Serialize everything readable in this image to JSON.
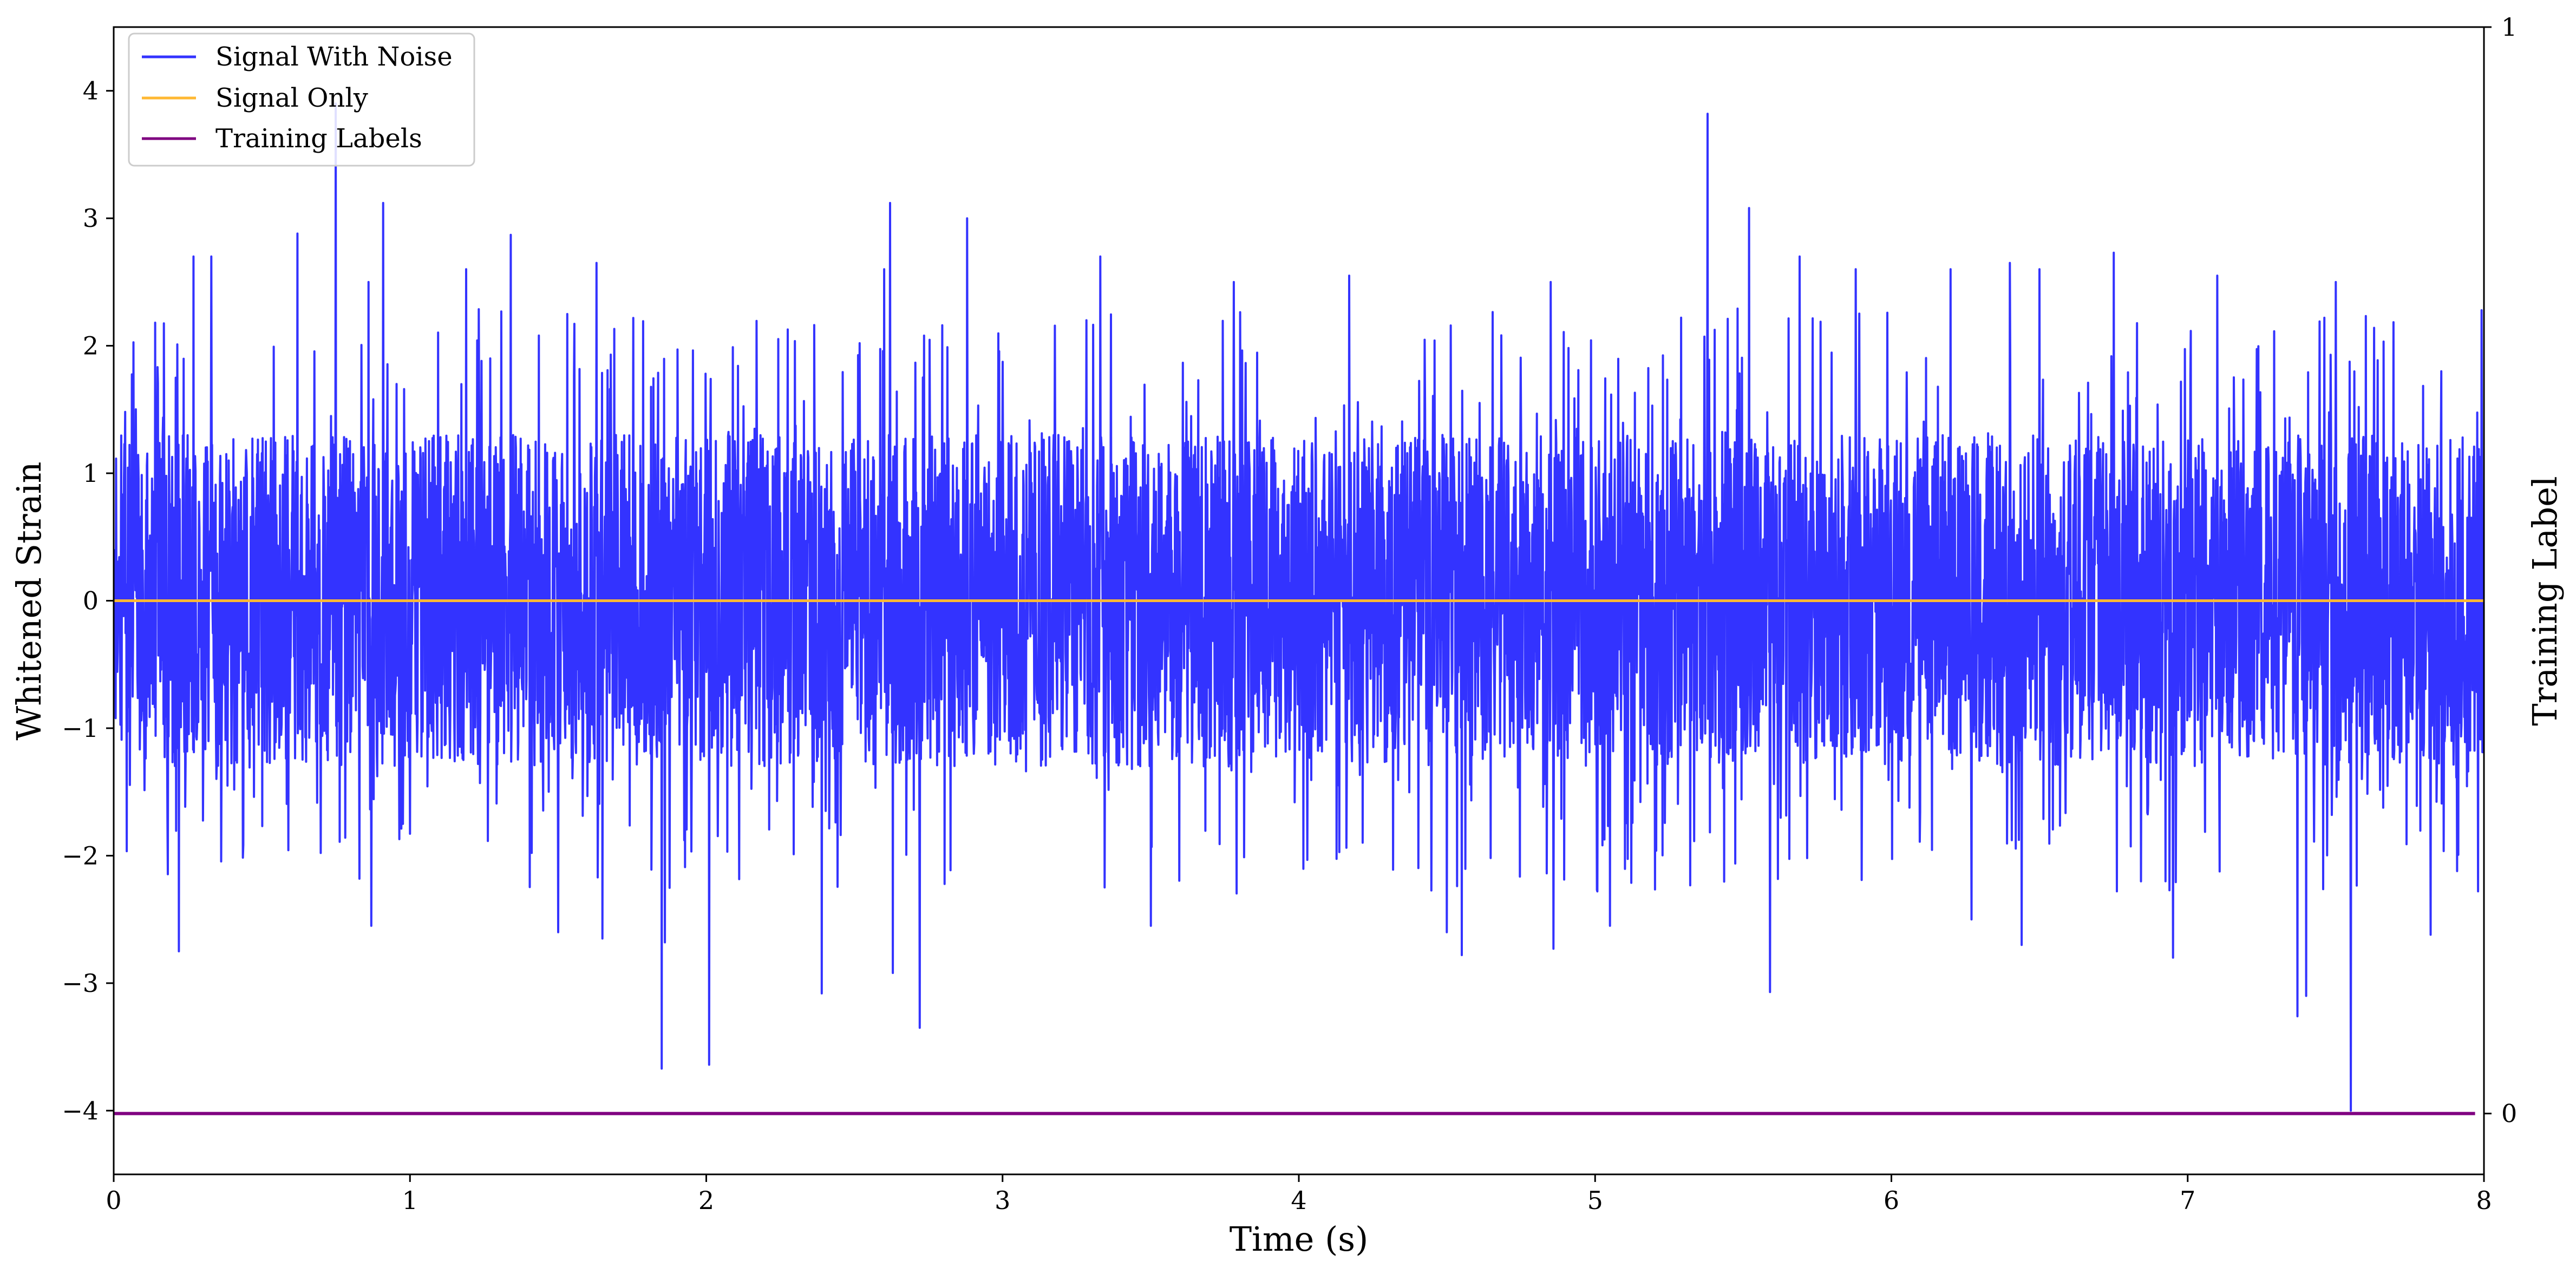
{
  "chart_data": {
    "type": "line",
    "title": "",
    "xlabel": "Time (s)",
    "ylabel": "Whitened Strain",
    "y2label": "Training Label",
    "xlim": [
      0,
      8
    ],
    "ylim": [
      -4.5,
      4.5
    ],
    "y2lim": [
      -0.056,
      1.0
    ],
    "x_ticks": [
      "0",
      "1",
      "2",
      "3",
      "4",
      "5",
      "6",
      "7",
      "8"
    ],
    "y_ticks": [
      "−4",
      "−3",
      "−2",
      "−1",
      "0",
      "1",
      "2",
      "3",
      "4"
    ],
    "y2_ticks": [
      "0",
      "1"
    ],
    "grid": false,
    "legend_position": "upper-left",
    "series": [
      {
        "name": "Signal With Noise",
        "color": "#3333ff",
        "axis": "left",
        "description_values": "dense noise",
        "peaks": [
          [
            0.75,
            3.9
          ],
          [
            0.86,
            2.5
          ],
          [
            0.91,
            3.12
          ],
          [
            0.27,
            2.7
          ],
          [
            0.33,
            2.7
          ],
          [
            0.62,
            2.88
          ],
          [
            1.19,
            2.6
          ],
          [
            1.34,
            2.87
          ],
          [
            1.63,
            2.65
          ],
          [
            2.62,
            3.12
          ],
          [
            2.88,
            3.0
          ],
          [
            2.6,
            2.6
          ],
          [
            3.33,
            2.7
          ],
          [
            3.78,
            2.5
          ],
          [
            4.17,
            2.55
          ],
          [
            4.85,
            2.5
          ],
          [
            5.38,
            3.82
          ],
          [
            5.52,
            3.08
          ],
          [
            5.69,
            2.7
          ],
          [
            5.88,
            2.6
          ],
          [
            6.2,
            2.6
          ],
          [
            6.4,
            2.65
          ],
          [
            6.5,
            2.6
          ],
          [
            6.75,
            2.73
          ],
          [
            7.1,
            2.55
          ],
          [
            7.5,
            2.5
          ],
          [
            7.98,
            2.42
          ]
        ],
        "troughs": [
          [
            0.22,
            -2.75
          ],
          [
            0.87,
            -2.55
          ],
          [
            1.5,
            -2.6
          ],
          [
            1.65,
            -2.65
          ],
          [
            1.85,
            -3.67
          ],
          [
            1.86,
            -2.68
          ],
          [
            2.01,
            -3.64
          ],
          [
            2.39,
            -3.08
          ],
          [
            2.63,
            -2.92
          ],
          [
            2.72,
            -3.35
          ],
          [
            3.5,
            -2.55
          ],
          [
            4.5,
            -2.6
          ],
          [
            4.55,
            -2.78
          ],
          [
            4.86,
            -2.73
          ],
          [
            5.05,
            -2.55
          ],
          [
            5.59,
            -3.07
          ],
          [
            6.27,
            -2.5
          ],
          [
            6.44,
            -2.7
          ],
          [
            6.95,
            -2.8
          ],
          [
            7.37,
            -3.26
          ],
          [
            7.4,
            -3.1
          ],
          [
            7.55,
            -4.0
          ],
          [
            7.82,
            -2.62
          ],
          [
            7.98,
            -2.28
          ]
        ],
        "typical_amplitude": 1.3,
        "spike_amplitude": 2.3
      },
      {
        "name": "Signal Only",
        "color": "#ffb833",
        "axis": "left",
        "x": [
          0,
          8
        ],
        "y": [
          0,
          0
        ]
      },
      {
        "name": "Training Labels",
        "color": "#7f0080",
        "axis": "right",
        "x": [
          0,
          7.97
        ],
        "y": [
          0,
          0
        ]
      }
    ]
  }
}
